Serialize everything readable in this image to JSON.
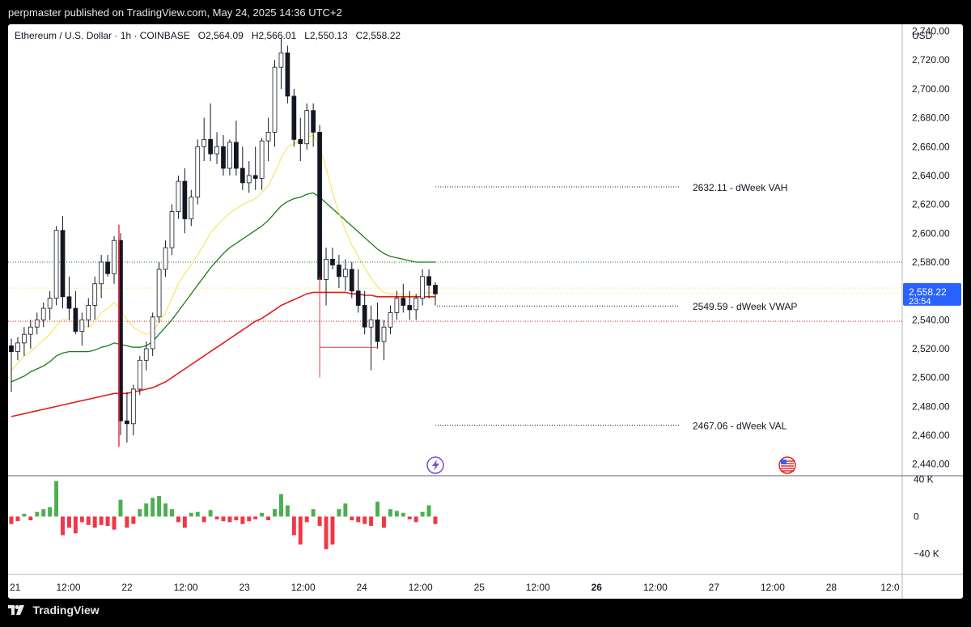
{
  "header": {
    "text": "perpmaster published on TradingView.com, May 24, 2025 14:36 UTC+2"
  },
  "legend": {
    "symbol": "Ethereum / U.S. Dollar · 1h · COINBASE",
    "o_label": "O",
    "o": "2,564.09",
    "h_label": "H",
    "h": "2,566.01",
    "l_label": "L",
    "l": "2,550.13",
    "c_label": "C",
    "c": "2,558.22"
  },
  "footer": {
    "brand": "TradingView"
  },
  "colors": {
    "up": "#4caf50",
    "down": "#f23645",
    "ema_fast": "#f7e35a",
    "ema_mid": "#1b7a1b",
    "ema_slow": "#e01e1e",
    "price_label": "#2962ff"
  },
  "chart_data": {
    "type": "candlestick",
    "currency_label": "USD",
    "y_ticks": [
      "2,740.00",
      "2,720.00",
      "2,700.00",
      "2,680.00",
      "2,660.00",
      "2,640.00",
      "2,620.00",
      "2,600.00",
      "2,580.00",
      "2,560.00",
      "2,540.00",
      "2,520.00",
      "2,500.00",
      "2,480.00",
      "2,460.00",
      "2,440.00"
    ],
    "y_tick_values": [
      2740,
      2720,
      2700,
      2680,
      2660,
      2640,
      2620,
      2600,
      2580,
      2560,
      2540,
      2520,
      2500,
      2480,
      2460,
      2440
    ],
    "ylim": [
      2432,
      2742
    ],
    "x_ticks": [
      {
        "label": "21",
        "h": 0
      },
      {
        "label": "12:00",
        "h": 12
      },
      {
        "label": "22",
        "h": 24
      },
      {
        "label": "12:00",
        "h": 36
      },
      {
        "label": "23",
        "h": 48
      },
      {
        "label": "12:00",
        "h": 60
      },
      {
        "label": "24",
        "h": 72
      },
      {
        "label": "12:00",
        "h": 84
      },
      {
        "label": "25",
        "h": 96
      },
      {
        "label": "12:00",
        "h": 108
      },
      {
        "label": "26",
        "h": 120
      },
      {
        "label": "12:00",
        "h": 132
      },
      {
        "label": "27",
        "h": 144
      },
      {
        "label": "12:00",
        "h": 156
      },
      {
        "label": "28",
        "h": 168
      },
      {
        "label": "12:0",
        "h": 180
      }
    ],
    "last_price": {
      "value": 2558.22,
      "label": "2,558.22",
      "countdown": "23:54"
    },
    "candles": [
      [
        2522,
        2527,
        2490,
        2518
      ],
      [
        2518,
        2528,
        2512,
        2524
      ],
      [
        2524,
        2535,
        2515,
        2530
      ],
      [
        2530,
        2540,
        2520,
        2535
      ],
      [
        2535,
        2545,
        2530,
        2540
      ],
      [
        2540,
        2552,
        2535,
        2548
      ],
      [
        2548,
        2560,
        2540,
        2555
      ],
      [
        2555,
        2605,
        2550,
        2602
      ],
      [
        2602,
        2612,
        2548,
        2556
      ],
      [
        2556,
        2570,
        2540,
        2548
      ],
      [
        2548,
        2560,
        2530,
        2532
      ],
      [
        2532,
        2545,
        2522,
        2540
      ],
      [
        2540,
        2555,
        2535,
        2550
      ],
      [
        2550,
        2570,
        2540,
        2565
      ],
      [
        2565,
        2585,
        2555,
        2580
      ],
      [
        2580,
        2585,
        2570,
        2572
      ],
      [
        2572,
        2598,
        2565,
        2595
      ],
      [
        2595,
        2600,
        2460,
        2470
      ],
      [
        2470,
        2490,
        2455,
        2468
      ],
      [
        2468,
        2495,
        2460,
        2492
      ],
      [
        2492,
        2515,
        2488,
        2512
      ],
      [
        2512,
        2525,
        2505,
        2520
      ],
      [
        2520,
        2545,
        2515,
        2542
      ],
      [
        2542,
        2580,
        2538,
        2575
      ],
      [
        2575,
        2595,
        2570,
        2590
      ],
      [
        2590,
        2620,
        2585,
        2615
      ],
      [
        2615,
        2640,
        2610,
        2636
      ],
      [
        2636,
        2645,
        2600,
        2610
      ],
      [
        2610,
        2630,
        2605,
        2625
      ],
      [
        2625,
        2665,
        2620,
        2660
      ],
      [
        2660,
        2680,
        2650,
        2665
      ],
      [
        2665,
        2690,
        2650,
        2655
      ],
      [
        2655,
        2670,
        2648,
        2660
      ],
      [
        2660,
        2668,
        2640,
        2645
      ],
      [
        2645,
        2665,
        2640,
        2663
      ],
      [
        2663,
        2678,
        2640,
        2645
      ],
      [
        2645,
        2660,
        2630,
        2635
      ],
      [
        2635,
        2650,
        2628,
        2640
      ],
      [
        2640,
        2660,
        2630,
        2638
      ],
      [
        2638,
        2666,
        2630,
        2664
      ],
      [
        2664,
        2680,
        2650,
        2670
      ],
      [
        2670,
        2720,
        2660,
        2715
      ],
      [
        2715,
        2735,
        2700,
        2725
      ],
      [
        2725,
        2730,
        2690,
        2695
      ],
      [
        2695,
        2700,
        2660,
        2665
      ],
      [
        2665,
        2680,
        2650,
        2662
      ],
      [
        2662,
        2690,
        2658,
        2685
      ],
      [
        2685,
        2690,
        2660,
        2670
      ],
      [
        2670,
        2675,
        2560,
        2568
      ],
      [
        2568,
        2590,
        2550,
        2582
      ],
      [
        2582,
        2590,
        2575,
        2578
      ],
      [
        2578,
        2585,
        2562,
        2570
      ],
      [
        2570,
        2582,
        2560,
        2575
      ],
      [
        2575,
        2580,
        2555,
        2560
      ],
      [
        2560,
        2575,
        2545,
        2550
      ],
      [
        2550,
        2560,
        2530,
        2535
      ],
      [
        2535,
        2550,
        2505,
        2540
      ],
      [
        2540,
        2552,
        2520,
        2525
      ],
      [
        2525,
        2540,
        2512,
        2535
      ],
      [
        2535,
        2550,
        2530,
        2545
      ],
      [
        2545,
        2560,
        2540,
        2555
      ],
      [
        2555,
        2565,
        2545,
        2550
      ],
      [
        2550,
        2560,
        2540,
        2547
      ],
      [
        2547,
        2558,
        2540,
        2555
      ],
      [
        2555,
        2575,
        2550,
        2570
      ],
      [
        2570,
        2575,
        2555,
        2564
      ],
      [
        2564,
        2566,
        2550,
        2558
      ]
    ],
    "ema_fast": [
      2505,
      2510,
      2515,
      2518,
      2522,
      2526,
      2530,
      2536,
      2540,
      2540,
      2538,
      2536,
      2535,
      2538,
      2545,
      2548,
      2552,
      2547,
      2540,
      2535,
      2532,
      2530,
      2532,
      2538,
      2545,
      2555,
      2565,
      2572,
      2578,
      2585,
      2592,
      2600,
      2605,
      2610,
      2614,
      2617,
      2620,
      2622,
      2624,
      2628,
      2633,
      2642,
      2652,
      2660,
      2662,
      2663,
      2666,
      2668,
      2660,
      2645,
      2628,
      2614,
      2602,
      2592,
      2584,
      2576,
      2569,
      2563,
      2559,
      2558,
      2558,
      2558,
      2557,
      2557,
      2558,
      2559,
      2559
    ],
    "ema_mid": [
      2497,
      2499,
      2501,
      2504,
      2506,
      2508,
      2511,
      2515,
      2517,
      2518,
      2518,
      2518,
      2518,
      2519,
      2521,
      2522,
      2524,
      2523,
      2522,
      2521,
      2521,
      2522,
      2525,
      2530,
      2535,
      2540,
      2546,
      2552,
      2558,
      2564,
      2570,
      2576,
      2581,
      2586,
      2590,
      2593,
      2596,
      2599,
      2602,
      2605,
      2609,
      2614,
      2619,
      2622,
      2624,
      2625,
      2627,
      2628,
      2625,
      2621,
      2617,
      2613,
      2609,
      2605,
      2601,
      2597,
      2593,
      2589,
      2586,
      2584,
      2583,
      2582,
      2581,
      2580,
      2580,
      2580,
      2580
    ],
    "ema_slow": [
      2473,
      2474,
      2475,
      2476,
      2477,
      2478,
      2479,
      2480,
      2481,
      2482,
      2483,
      2484,
      2485,
      2486,
      2487,
      2488,
      2489,
      2489,
      2489,
      2490,
      2491,
      2492,
      2493,
      2495,
      2497,
      2500,
      2503,
      2506,
      2509,
      2512,
      2515,
      2518,
      2521,
      2524,
      2527,
      2530,
      2533,
      2536,
      2539,
      2541,
      2544,
      2547,
      2550,
      2552,
      2554,
      2556,
      2558,
      2559,
      2559,
      2559,
      2559,
      2559,
      2559,
      2558,
      2558,
      2557,
      2557,
      2556,
      2556,
      2556,
      2556,
      2556,
      2556,
      2556,
      2556,
      2556,
      2556
    ],
    "volume_ticks": [
      "40 K",
      "0",
      "−40 K"
    ],
    "volume_tick_values": [
      40000,
      0,
      -40000
    ],
    "volume_ylim": [
      -62000,
      42000
    ],
    "volume": [
      -8000,
      -5000,
      3000,
      -4000,
      5000,
      8000,
      10000,
      38000,
      -20000,
      -12000,
      -18000,
      -6000,
      -9000,
      -12000,
      -9000,
      -10000,
      -14000,
      18000,
      -12000,
      -8000,
      8000,
      14000,
      20000,
      22000,
      14000,
      8000,
      -6000,
      -12000,
      4000,
      5000,
      -6000,
      7000,
      -3000,
      -5000,
      -6000,
      -4000,
      -8000,
      -5000,
      -3000,
      4000,
      -4000,
      8000,
      24000,
      12000,
      -20000,
      -30000,
      -6000,
      8000,
      -10000,
      -35000,
      -30000,
      8000,
      14000,
      -4000,
      -6000,
      -8000,
      -10000,
      16000,
      -12000,
      8000,
      6000,
      4000,
      -3000,
      -6000,
      5000,
      12000,
      -8000
    ],
    "levels": [
      {
        "value": 2632.11,
        "label": "2632.11 - dWeek VAH"
      },
      {
        "value": 2549.59,
        "label": "2549.59 - dWeek VWAP"
      },
      {
        "value": 2467.06,
        "label": "2467.06 - dWeek VAL"
      }
    ],
    "ref_lines": [
      {
        "value": 2580,
        "color": "#1b7a1b"
      },
      {
        "value": 2562,
        "color": "#f7e35a"
      },
      {
        "value": 2539,
        "color": "#e01e1e"
      }
    ]
  }
}
